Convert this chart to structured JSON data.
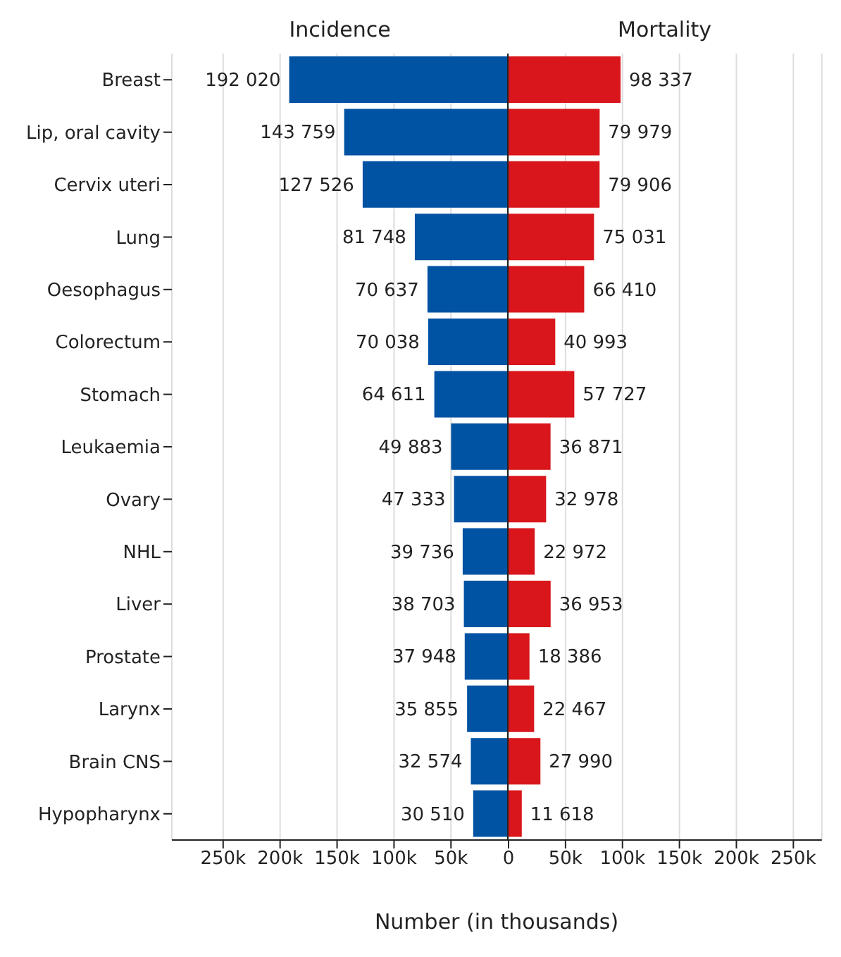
{
  "chart_data": [
    {
      "type": "bar",
      "orientation": "horizontal",
      "title": "Incidence",
      "categories": [
        "Breast",
        "Lip, oral cavity",
        "Cervix uteri",
        "Lung",
        "Oesophagus",
        "Colorectum",
        "Stomach",
        "Leukaemia",
        "Ovary",
        "NHL",
        "Liver",
        "Prostate",
        "Larynx",
        "Brain CNS",
        "Hypopharynx"
      ],
      "series": [
        {
          "color": "#0052a3",
          "values": [
            192020,
            143759,
            127526,
            81748,
            70637,
            70038,
            64611,
            49883,
            47333,
            39736,
            38703,
            37948,
            35855,
            32574,
            30510
          ],
          "value_labels": [
            "192 020",
            "143 759",
            "127 526",
            "81 748",
            "70 637",
            "70 038",
            "64 611",
            "49 883",
            "47 333",
            "39 736",
            "38 703",
            "37 948",
            "35 855",
            "32 574",
            "30 510"
          ]
        }
      ],
      "xlim": [
        295000,
        0
      ],
      "xticks": [
        {
          "value": 250000,
          "label": "250k"
        },
        {
          "value": 200000,
          "label": "200k"
        },
        {
          "value": 150000,
          "label": "150k"
        },
        {
          "value": 100000,
          "label": "100k"
        },
        {
          "value": 50000,
          "label": "50k"
        }
      ],
      "grid": "x"
    },
    {
      "type": "bar",
      "orientation": "horizontal",
      "title": "Mortality",
      "xlabel": "Number (in thousands)",
      "tick_labels": "x",
      "categories": [
        null,
        null,
        null,
        null,
        null,
        null,
        null,
        null,
        null,
        null,
        null,
        null,
        null,
        null,
        null
      ],
      "series": [
        {
          "color": "#d9161b",
          "values": [
            98337,
            79979,
            79906,
            75031,
            66410,
            40993,
            57727,
            36871,
            32978,
            22972,
            36953,
            18386,
            22467,
            27990,
            11618
          ],
          "value_labels": [
            "98 337",
            "79 979",
            "79 906",
            "75 031",
            "66 410",
            "40 993",
            "57 727",
            "36 871",
            "32 978",
            "22 972",
            "36 953",
            "18 386",
            "22 467",
            "27 990",
            "11 618"
          ]
        }
      ],
      "xlim": [
        0,
        275000
      ],
      "xticks": [
        0,
        {
          "value": 50000,
          "label": "50k"
        },
        {
          "value": 100000,
          "label": "100k"
        },
        {
          "value": 150000,
          "label": "150k"
        },
        {
          "value": 200000,
          "label": "200k"
        },
        {
          "value": 250000,
          "label": "250k"
        }
      ],
      "grid": "x"
    }
  ]
}
